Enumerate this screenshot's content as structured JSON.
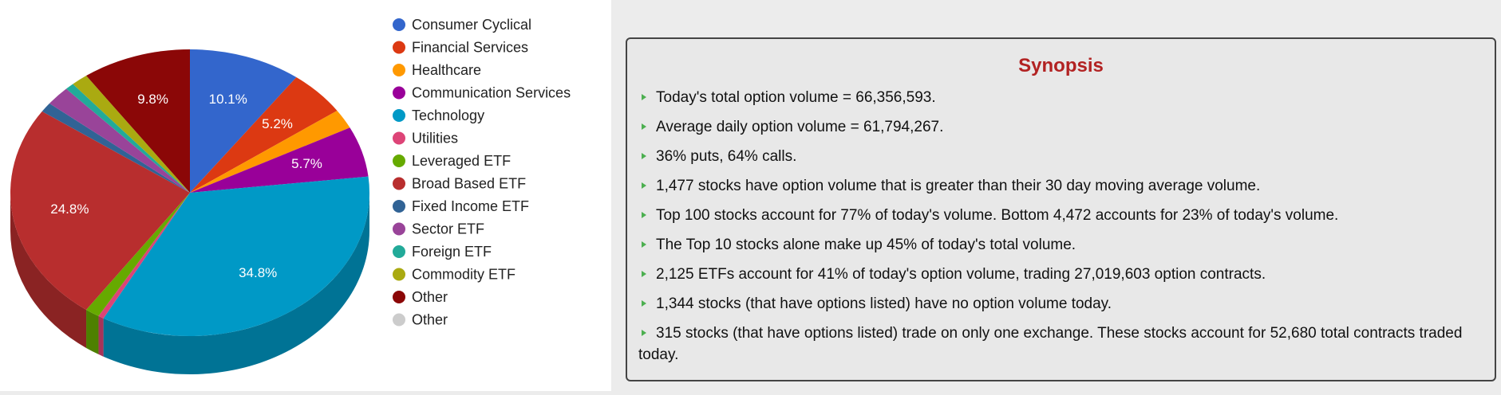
{
  "chart_data": {
    "type": "pie3d",
    "categories": [
      "Consumer Cyclical",
      "Financial Services",
      "Healthcare",
      "Communication Services",
      "Technology",
      "Utilities",
      "Leveraged ETF",
      "Broad Based ETF",
      "Fixed Income ETF",
      "Sector ETF",
      "Foreign ETF",
      "Commodity ETF",
      "Other",
      "Other"
    ],
    "values": [
      10.1,
      5.2,
      2.2,
      5.7,
      34.8,
      0.5,
      1.3,
      24.8,
      1.1,
      2.2,
      0.8,
      1.5,
      9.8,
      0
    ],
    "value_labels": [
      "10.1%",
      "5.2%",
      null,
      "5.7%",
      "34.8%",
      null,
      null,
      "24.8%",
      null,
      null,
      null,
      null,
      "9.8%",
      null
    ],
    "colors": [
      "#3366cc",
      "#dc3912",
      "#ff9900",
      "#990099",
      "#0099c6",
      "#dd4477",
      "#66aa00",
      "#b82e2e",
      "#316395",
      "#994499",
      "#22aa99",
      "#aaaa11",
      "#8b0707",
      "#cccccc"
    ],
    "legend": "right"
  },
  "synopsis": {
    "title": "Synopsis",
    "items": [
      "Today's total option volume = 66,356,593.",
      "Average daily option volume = 61,794,267.",
      "36% puts, 64% calls.",
      "1,477 stocks have option volume that is greater than their 30 day moving average volume.",
      "Top 100 stocks account for 77% of today's volume. Bottom 4,472 accounts for 23% of today's volume.",
      "The Top 10 stocks alone make up 45% of today's total volume.",
      "2,125 ETFs account for 41% of today's option volume, trading 27,019,603 option contracts.",
      "1,344 stocks (that have options listed) have no option volume today.",
      "315 stocks (that have options listed) trade on only one exchange. These stocks account for 52,680 total contracts traded today."
    ]
  }
}
